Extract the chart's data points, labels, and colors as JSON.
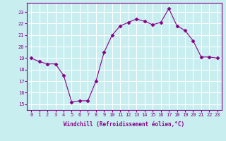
{
  "x": [
    0,
    1,
    2,
    3,
    4,
    5,
    6,
    7,
    8,
    9,
    10,
    11,
    12,
    13,
    14,
    15,
    16,
    17,
    18,
    19,
    20,
    21,
    22,
    23
  ],
  "y": [
    19.0,
    18.7,
    18.5,
    18.5,
    17.5,
    15.2,
    15.3,
    15.3,
    17.0,
    19.5,
    21.0,
    21.8,
    22.1,
    22.4,
    22.2,
    21.9,
    22.1,
    23.3,
    21.8,
    21.4,
    20.5,
    19.1,
    19.1,
    19.0
  ],
  "line_color": "#880088",
  "marker": "D",
  "marker_size": 2.5,
  "bg_color": "#c8eef0",
  "grid_color": "#ffffff",
  "xlabel": "Windchill (Refroidissement éolien,°C)",
  "ylabel_ticks": [
    15,
    16,
    17,
    18,
    19,
    20,
    21,
    22,
    23
  ],
  "xlim": [
    -0.5,
    23.5
  ],
  "ylim": [
    14.5,
    23.8
  ],
  "tick_color": "#880088",
  "label_color": "#880088",
  "font": "monospace",
  "tick_fontsize": 5.0,
  "label_fontsize": 5.5
}
